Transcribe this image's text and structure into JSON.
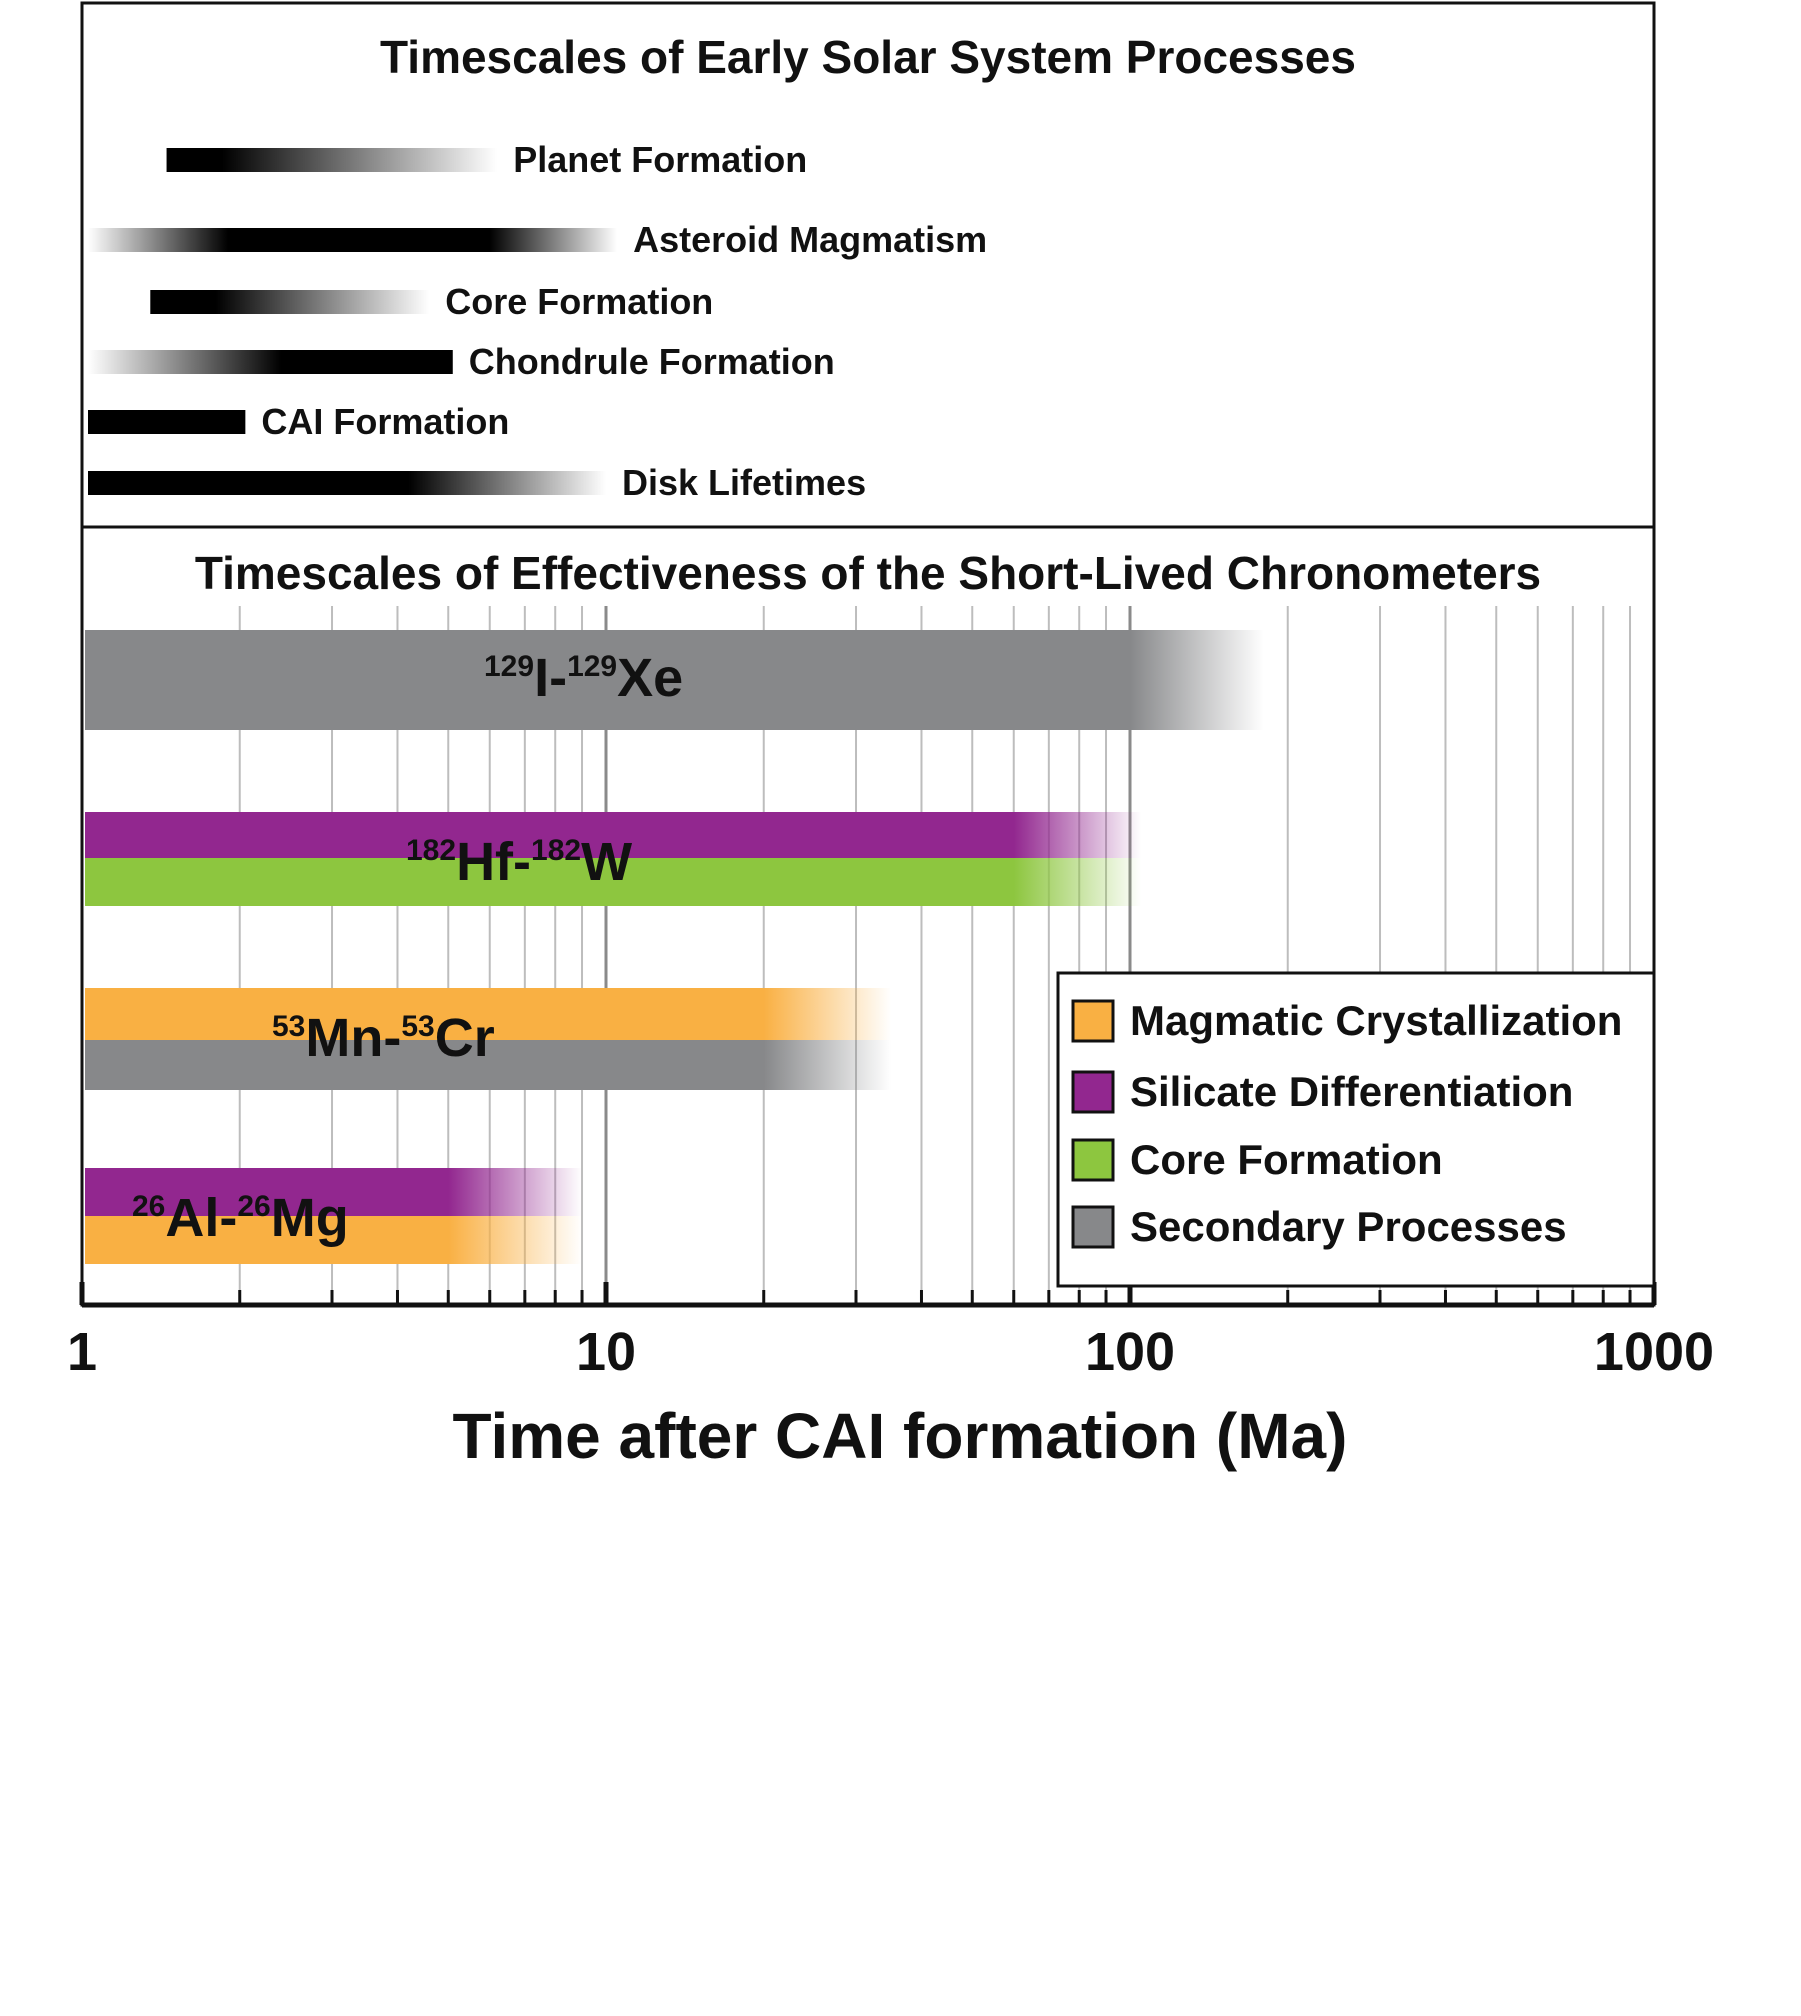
{
  "chart_data": [
    {
      "type": "bar",
      "title": "Timescales of Early Solar System Processes",
      "x_scale": "log",
      "xlim": [
        1,
        1000
      ],
      "bars": [
        {
          "label": "Planet Formation",
          "start": 1.45,
          "solid_to": 1.85,
          "end": 6.2,
          "fade": "out"
        },
        {
          "label": "Asteroid Magmatism",
          "start": 1.0,
          "solid_from": 1.9,
          "solid_to": 6.0,
          "end": 10.5,
          "fade": "both"
        },
        {
          "label": "Core Formation",
          "start": 1.35,
          "solid_to": 1.8,
          "end": 4.6,
          "fade": "out"
        },
        {
          "label": "Chondrule Formation",
          "start": 1.0,
          "solid_from": 2.4,
          "end": 5.1,
          "fade": "in"
        },
        {
          "label": "CAI Formation",
          "start": 1.0,
          "end": 2.05,
          "fade": "none"
        },
        {
          "label": "Disk Lifetimes",
          "start": 1.0,
          "solid_to": 4.2,
          "end": 10.0,
          "fade": "out"
        }
      ]
    },
    {
      "type": "bar",
      "title": "Timescales of Effectiveness of the Short-Lived Chronometers",
      "xlabel": "Time after CAI formation (Ma)",
      "x_scale": "log",
      "xlim": [
        1,
        1000
      ],
      "ticks": [
        {
          "value": 1,
          "label": "1"
        },
        {
          "value": 10,
          "label": "10"
        },
        {
          "value": 100,
          "label": "100"
        },
        {
          "value": 1000,
          "label": "1000"
        }
      ],
      "grid": true,
      "chronometers": [
        {
          "label_parent_mass": "129",
          "label_parent": "I-",
          "label_daughter_mass": "129",
          "label_daughter": "Xe",
          "bars": [
            {
              "category": "Secondary Processes",
              "start": 1,
              "solid_to": 100,
              "end": 180
            }
          ]
        },
        {
          "label_parent_mass": "182",
          "label_parent": "Hf-",
          "label_daughter_mass": "182",
          "label_daughter": "W",
          "bars": [
            {
              "category": "Silicate Differentiation",
              "start": 1,
              "solid_to": 60,
              "end": 105
            },
            {
              "category": "Core Formation",
              "start": 1,
              "solid_to": 60,
              "end": 105
            }
          ]
        },
        {
          "label_parent_mass": "53",
          "label_parent": "Mn-",
          "label_daughter_mass": "53",
          "label_daughter": "Cr",
          "bars": [
            {
              "category": "Magmatic Crystallization",
              "start": 1,
              "solid_to": 20,
              "end": 35
            },
            {
              "category": "Secondary Processes",
              "start": 1,
              "solid_to": 20,
              "end": 35
            }
          ]
        },
        {
          "label_parent_mass": "26",
          "label_parent": "Al-",
          "label_daughter_mass": "26",
          "label_daughter": "Mg",
          "bars": [
            {
              "category": "Silicate Differentiation",
              "start": 1,
              "solid_to": 5,
              "end": 9
            },
            {
              "category": "Magmatic Crystallization",
              "start": 1,
              "solid_to": 5,
              "end": 9
            }
          ]
        }
      ],
      "legend": {
        "position": "bottom-right",
        "entries": [
          {
            "label": "Magmatic Crystallization",
            "color": "#f9b043"
          },
          {
            "label": "Silicate Differentiation",
            "color": "#92278f"
          },
          {
            "label": "Core Formation",
            "color": "#8dc63f"
          },
          {
            "label": "Secondary Processes",
            "color": "#87888a"
          }
        ]
      }
    }
  ]
}
